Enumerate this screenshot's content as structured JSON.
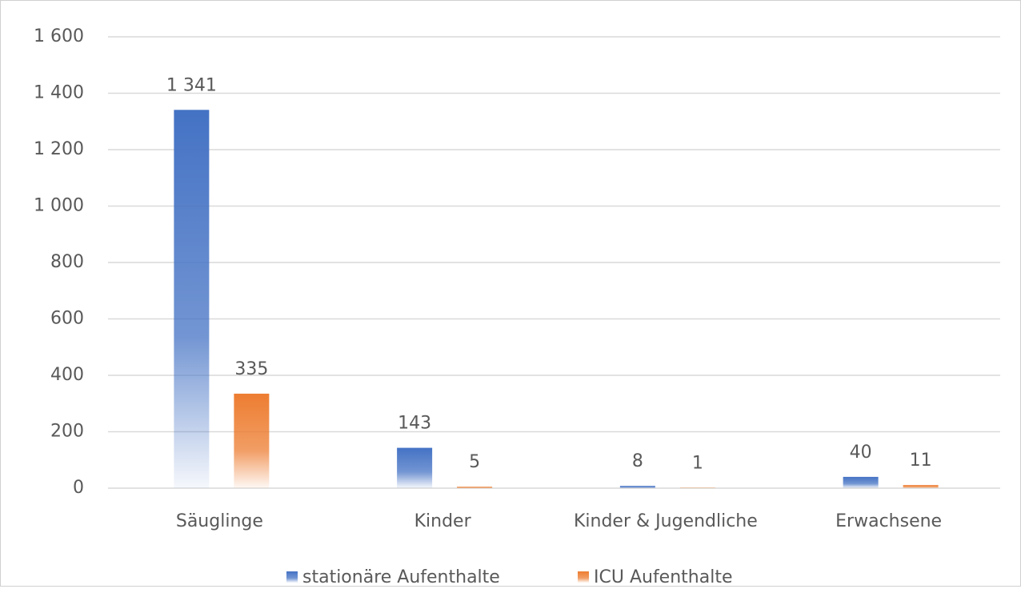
{
  "chart_data": {
    "type": "bar",
    "categories": [
      "Säuglinge",
      "Kinder",
      "Kinder & Jugendliche",
      "Erwachsene"
    ],
    "series": [
      {
        "name": "stationäre Aufenthalte",
        "color": "#4472c4",
        "values": [
          1341,
          143,
          8,
          40
        ],
        "value_labels": [
          "1 341",
          "143",
          "8",
          "40"
        ]
      },
      {
        "name": "ICU Aufenthalte",
        "color": "#ed7d31",
        "values": [
          335,
          5,
          1,
          11
        ],
        "value_labels": [
          "335",
          "5",
          "1",
          "11"
        ]
      }
    ],
    "ylim": [
      0,
      1600
    ],
    "yticks": [
      0,
      200,
      400,
      600,
      800,
      {
        "value": 1000,
        "label": "1 000"
      },
      {
        "value": 1200,
        "label": "1 200"
      },
      {
        "value": 1400,
        "label": "1 400"
      },
      {
        "value": 1600,
        "label": "1 600"
      }
    ],
    "grid": true,
    "legend": "bottom"
  }
}
